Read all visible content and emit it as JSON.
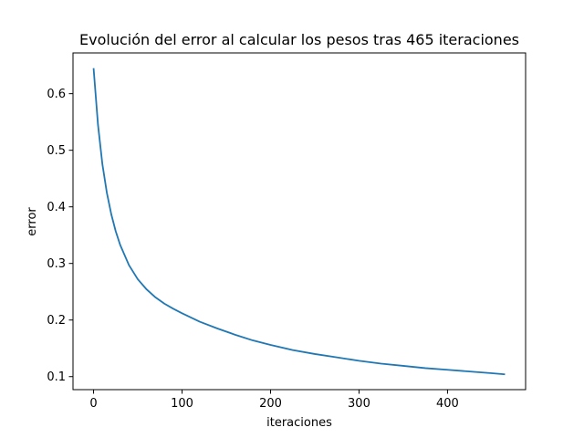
{
  "chart_data": {
    "type": "line",
    "title": "Evolución del error al calcular los pesos tras 465 iteraciones",
    "xlabel": "iteraciones",
    "ylabel": "error",
    "xlim": [
      -23.25,
      488.25
    ],
    "ylim": [
      0.077,
      0.672
    ],
    "x_ticks": [
      0,
      100,
      200,
      300,
      400
    ],
    "x_tick_labels": [
      "0",
      "100",
      "200",
      "300",
      "400"
    ],
    "y_ticks": [
      0.1,
      0.2,
      0.3,
      0.4,
      0.5,
      0.6
    ],
    "y_tick_labels": [
      "0.1",
      "0.2",
      "0.3",
      "0.4",
      "0.5",
      "0.6"
    ],
    "grid": false,
    "legend": "none",
    "series": [
      {
        "color": "#1f77b4",
        "x": [
          0,
          5,
          10,
          15,
          20,
          25,
          30,
          40,
          50,
          60,
          70,
          80,
          90,
          100,
          120,
          140,
          160,
          180,
          200,
          225,
          250,
          275,
          300,
          325,
          350,
          375,
          400,
          425,
          450,
          465
        ],
        "y": [
          0.645,
          0.545,
          0.475,
          0.425,
          0.387,
          0.357,
          0.333,
          0.297,
          0.272,
          0.254,
          0.24,
          0.229,
          0.22,
          0.212,
          0.197,
          0.185,
          0.174,
          0.164,
          0.156,
          0.147,
          0.14,
          0.134,
          0.128,
          0.123,
          0.119,
          0.115,
          0.112,
          0.109,
          0.106,
          0.104
        ]
      }
    ]
  }
}
